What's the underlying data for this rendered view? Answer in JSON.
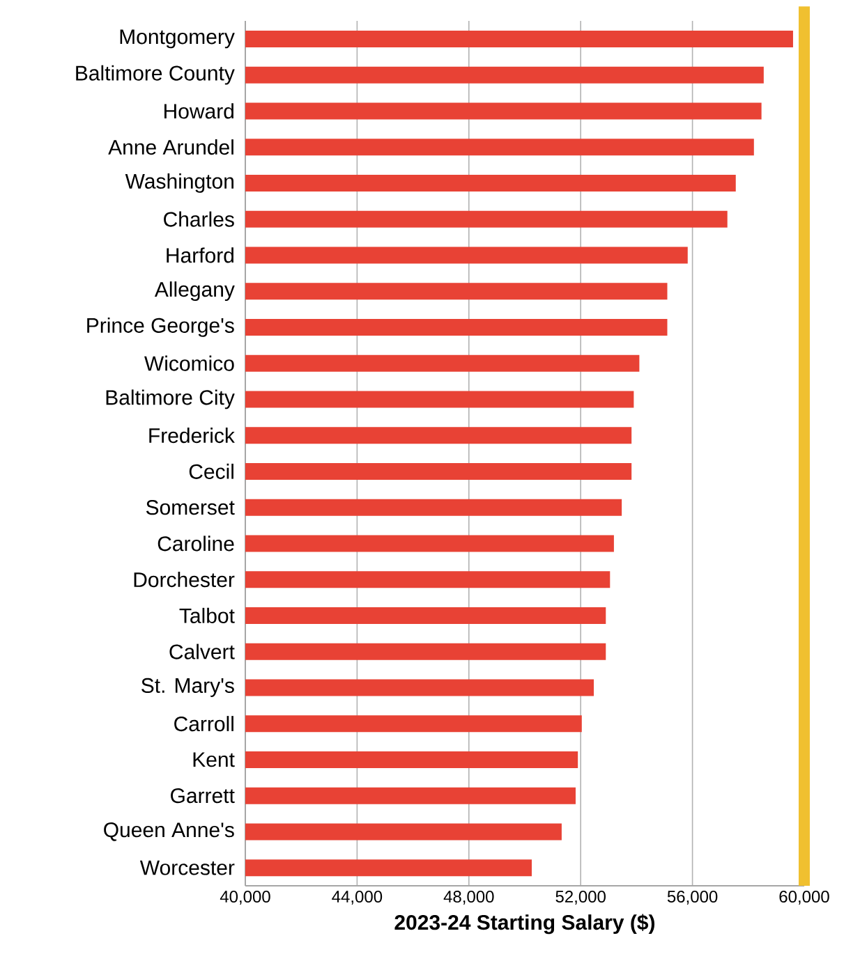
{
  "chart_data": {
    "type": "bar",
    "orientation": "horizontal",
    "xlabel": "2023-24 Starting Salary ($)",
    "categories": [
      "Montgomery",
      "Baltimore County",
      "Howard",
      "Anne Arundel",
      "Washington",
      "Charles",
      "Harford",
      "Allegany",
      "Prince George's",
      "Wicomico",
      "Baltimore City",
      "Frederick",
      "Cecil",
      "Somerset",
      "Caroline",
      "Dorchester",
      "Talbot",
      "Calvert",
      "St. Mary's",
      "Carroll",
      "Kent",
      "Garrett",
      "Queen Anne's",
      "Worcester"
    ],
    "values": [
      59600,
      58550,
      58470,
      58200,
      57550,
      57250,
      55830,
      55100,
      55100,
      54100,
      53900,
      53820,
      53820,
      53470,
      53190,
      53050,
      52900,
      52900,
      52470,
      52040,
      51900,
      51820,
      51320,
      50250
    ],
    "color": "#e84235",
    "xlim": [
      40000,
      60000
    ],
    "xticks": [
      {
        "value": 40000,
        "label": "40,000"
      },
      {
        "value": 44000,
        "label": "44,000"
      },
      {
        "value": 48000,
        "label": "48,000"
      },
      {
        "value": 52000,
        "label": "52,000"
      },
      {
        "value": 56000,
        "label": "56,000"
      },
      {
        "value": 60000,
        "label": "60,000"
      }
    ],
    "grid": "x",
    "ref_lines": [
      {
        "axis": "x",
        "value": 60000,
        "color": "#f0c030"
      }
    ]
  }
}
